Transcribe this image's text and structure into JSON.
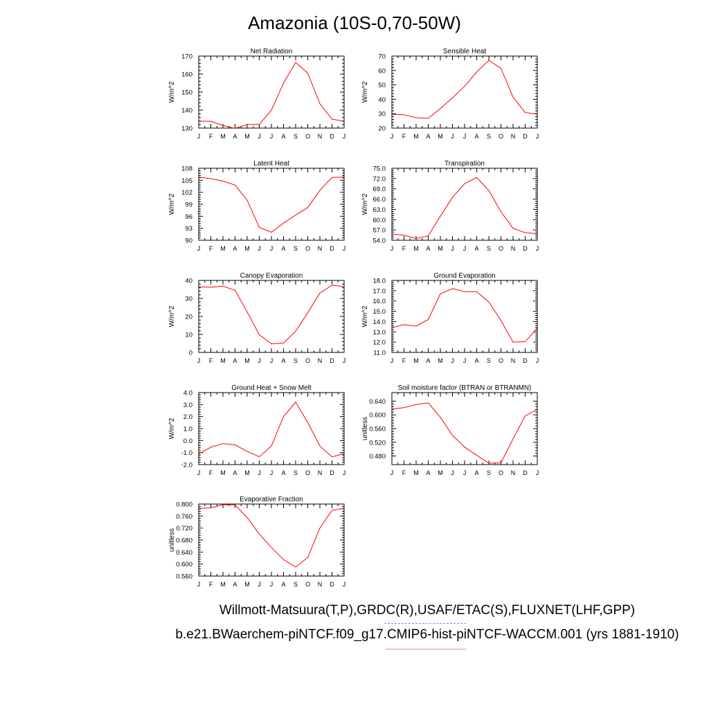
{
  "page": {
    "title": "Amazonia (10S-0,70-50W)",
    "footer_obs": "Willmott-Matsuura(T,P),GRDC(R),USAF/ETAC(S),FLUXNET(LHF,GPP)",
    "footer_case": "b.e21.BWaerchem-piNTCF.f09_g17.CMIP6-hist-piNTCF-WACCM.001 (yrs 1881-1910)",
    "line_color": "#ff0000",
    "deco_blue": "#8080ff",
    "deco_red": "#ff8080"
  },
  "chart_data": [
    {
      "type": "line",
      "title": "Net Radiation",
      "ylabel": "W/m^2",
      "categories": [
        "J",
        "F",
        "M",
        "A",
        "M",
        "J",
        "J",
        "A",
        "S",
        "O",
        "N",
        "D",
        "J"
      ],
      "yticks": [
        "130",
        "140",
        "150",
        "160",
        "170"
      ],
      "ylim": [
        130,
        170
      ],
      "values": [
        133.8,
        133.8,
        131.5,
        129.8,
        132.0,
        132.0,
        140.0,
        155.0,
        166.5,
        160.5,
        143.5,
        135.0,
        133.7
      ]
    },
    {
      "type": "line",
      "title": "Sensible Heat",
      "ylabel": "W/m^2",
      "categories": [
        "J",
        "F",
        "M",
        "A",
        "M",
        "J",
        "J",
        "A",
        "S",
        "O",
        "N",
        "D",
        "J"
      ],
      "yticks": [
        "20",
        "30",
        "40",
        "50",
        "60",
        "70"
      ],
      "ylim": [
        20,
        70
      ],
      "values": [
        29.5,
        29.3,
        27.2,
        26.8,
        33.5,
        41.0,
        49.0,
        59.0,
        67.0,
        61.5,
        41.5,
        30.8,
        29.6
      ]
    },
    {
      "type": "line",
      "title": "Latent Heat",
      "ylabel": "W/m^2",
      "categories": [
        "J",
        "F",
        "M",
        "A",
        "M",
        "J",
        "J",
        "A",
        "S",
        "O",
        "N",
        "D",
        "J"
      ],
      "yticks": [
        "90",
        "93",
        "96",
        "99",
        "102",
        "105",
        "108"
      ],
      "ylim": [
        90,
        108
      ],
      "values": [
        105.8,
        105.4,
        104.8,
        103.8,
        100.0,
        93.2,
        92.0,
        94.3,
        96.3,
        98.2,
        102.5,
        105.7,
        105.8
      ]
    },
    {
      "type": "line",
      "title": "Transpiration",
      "ylabel": "W/m^2",
      "categories": [
        "J",
        "F",
        "M",
        "A",
        "M",
        "J",
        "J",
        "A",
        "S",
        "O",
        "N",
        "D",
        "J"
      ],
      "yticks": [
        "54.0",
        "57.0",
        "60.0",
        "63.0",
        "66.0",
        "69.0",
        "72.0",
        "75.0"
      ],
      "ylim": [
        54,
        75
      ],
      "values": [
        55.8,
        55.5,
        54.5,
        55.3,
        61.0,
        66.5,
        70.5,
        72.3,
        68.5,
        62.3,
        57.5,
        56.2,
        55.9
      ]
    },
    {
      "type": "line",
      "title": "Canopy Evaporation",
      "ylabel": "W/m^2",
      "categories": [
        "J",
        "F",
        "M",
        "A",
        "M",
        "J",
        "J",
        "A",
        "S",
        "O",
        "N",
        "D",
        "J"
      ],
      "yticks": [
        "0",
        "10",
        "20",
        "30",
        "40"
      ],
      "ylim": [
        0,
        40
      ],
      "values": [
        36.5,
        36.2,
        36.8,
        34.5,
        22.5,
        9.8,
        4.8,
        5.2,
        11.8,
        22.0,
        33.0,
        37.3,
        36.6
      ]
    },
    {
      "type": "line",
      "title": "Ground Evaporation",
      "ylabel": "W/m^2",
      "categories": [
        "J",
        "F",
        "M",
        "A",
        "M",
        "J",
        "J",
        "A",
        "S",
        "O",
        "N",
        "D",
        "J"
      ],
      "yticks": [
        "11.0",
        "12.0",
        "13.0",
        "14.0",
        "15.0",
        "16.0",
        "17.0",
        "18.0"
      ],
      "ylim": [
        11,
        18
      ],
      "values": [
        13.4,
        13.7,
        13.55,
        14.2,
        16.7,
        17.2,
        16.9,
        16.9,
        15.9,
        14.1,
        12.0,
        12.05,
        13.35
      ]
    },
    {
      "type": "line",
      "title": "Ground Heat + Snow Melt",
      "ylabel": "W/m^2",
      "categories": [
        "J",
        "F",
        "M",
        "A",
        "M",
        "J",
        "J",
        "A",
        "S",
        "O",
        "N",
        "D",
        "J"
      ],
      "yticks": [
        "-2.0",
        "-1.0",
        "0.0",
        "1.0",
        "2.0",
        "3.0",
        "4.0"
      ],
      "ylim": [
        -2,
        4
      ],
      "values": [
        -1.1,
        -0.55,
        -0.25,
        -0.35,
        -0.9,
        -1.35,
        -0.45,
        2.0,
        3.2,
        1.5,
        -0.45,
        -1.35,
        -1.1
      ]
    },
    {
      "type": "line",
      "title": "Soil moisture factor (BTRAN or BTRANMN)",
      "ylabel": "unitless",
      "categories": [
        "J",
        "F",
        "M",
        "A",
        "M",
        "J",
        "J",
        "A",
        "S",
        "O",
        "N",
        "D",
        "J"
      ],
      "yticks": [
        "0.480",
        "0.520",
        "0.560",
        "0.600",
        "0.640"
      ],
      "ylim": [
        0.455,
        0.665
      ],
      "values": [
        0.617,
        0.621,
        0.63,
        0.635,
        0.593,
        0.54,
        0.506,
        0.482,
        0.459,
        0.46,
        0.53,
        0.597,
        0.616
      ]
    },
    {
      "type": "line",
      "title": "Evaporative Fraction",
      "ylabel": "unitless",
      "categories": [
        "J",
        "F",
        "M",
        "A",
        "M",
        "J",
        "J",
        "A",
        "S",
        "O",
        "N",
        "D",
        "J"
      ],
      "yticks": [
        "0.560",
        "0.600",
        "0.640",
        "0.680",
        "0.720",
        "0.760",
        "0.800"
      ],
      "ylim": [
        0.56,
        0.8
      ],
      "values": [
        0.786,
        0.787,
        0.798,
        0.797,
        0.755,
        0.7,
        0.655,
        0.615,
        0.59,
        0.622,
        0.72,
        0.779,
        0.786
      ]
    }
  ]
}
